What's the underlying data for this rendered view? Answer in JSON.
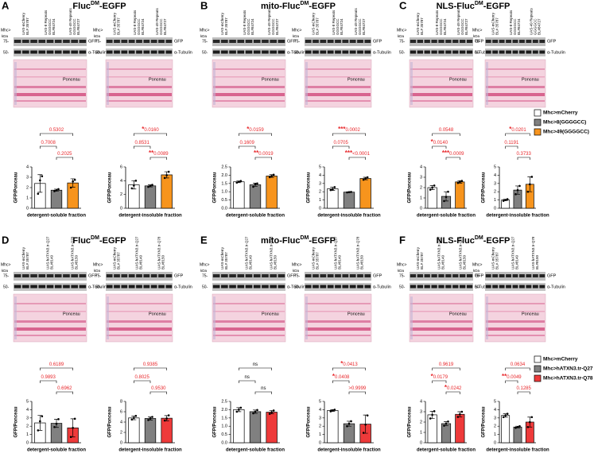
{
  "blot_labels": {
    "mhc": "Mhc>",
    "kda": "kDa",
    "m75": "75-",
    "m50": "50-",
    "gfp": "GFP",
    "tubulin": "α-Tubulin",
    "ponceau": "Ponceau"
  },
  "panels": [
    {
      "letter": "A",
      "title": [
        "Fluc",
        "DM",
        "-EGFP"
      ],
      "lanes": [
        [
          "UAS-mCherry",
          "BL# 35787"
        ],
        [
          "UAS-8 Repeats",
          "GGGGCC",
          "BL#84724"
        ],
        [
          "UAS-49 Repeats",
          "GGGGCC",
          "BL#84727"
        ]
      ]
    },
    {
      "letter": "B",
      "title": [
        "mito-Fluc",
        "DM",
        "-EGFP"
      ],
      "lanes": [
        [
          "UAS-mCherry",
          "BL# 35787"
        ],
        [
          "UAS-8 Repeats",
          "GGGGCC",
          "BL#84724"
        ],
        [
          "UAS-49 Repeats",
          "GGGGCC",
          "BL#84727"
        ]
      ]
    },
    {
      "letter": "C",
      "title": [
        "NLS-Fluc",
        "DM",
        "-EGFP"
      ],
      "lanes": [
        [
          "UAS-mCherry",
          "BL# 35787"
        ],
        [
          "UAS-8 Repeats",
          "GGGGCC",
          "BL#84724"
        ],
        [
          "UAS-49 Repeats",
          "GGGGCC",
          "BL#84727"
        ]
      ]
    },
    {
      "letter": "D",
      "title": [
        "Fluc",
        "DM",
        "-EGFP"
      ],
      "lanes": [
        [
          "UAS-mCherry",
          "BL# 35787"
        ],
        [
          "UAS-hATXN3.tr-Q27",
          "BL#8149"
        ],
        [
          "UAS-hATXN3.tr-Q78",
          "BL#8150"
        ]
      ]
    },
    {
      "letter": "E",
      "title": [
        "mito-Fluc",
        "DM",
        "-EGFP"
      ],
      "lanes": [
        [
          "UAS-mCherry",
          "BL# 35787"
        ],
        [
          "UAS-hATXN3.tr-Q27",
          "BL#8149"
        ],
        [
          "UAS-hATXN3.tr-Q78",
          "BL#8150"
        ]
      ]
    },
    {
      "letter": "F",
      "title": [
        "NLS-Fluc",
        "DM",
        "-EGFP"
      ],
      "lanes": [
        [
          "UAS-mCherry",
          "BL# 35787"
        ],
        [
          "UAS-hATXN3.tr-Q27",
          "BL#8149"
        ],
        [
          "UAS-hATXN3.tr-Q78",
          "BL#8150"
        ]
      ]
    }
  ],
  "legends": [
    [
      {
        "label": "Mhc>mCherry",
        "color": "#ffffff"
      },
      {
        "label": "Mhc>8(GGGGCC)",
        "color": "#808080"
      },
      {
        "label": "Mhc>49(GGGGCC)",
        "color": "#f7941d"
      }
    ],
    [
      {
        "label": "Mhc>mCherry",
        "color": "#ffffff"
      },
      {
        "label": "Mhc>hATXN3.tr-Q27",
        "color": "#808080"
      },
      {
        "label": "Mhc>hATXN3.tr-Q78",
        "color": "#ee3a3a"
      }
    ]
  ],
  "chart_data": [
    {
      "type": "bar",
      "xlabel": "detergent-soluble fraction",
      "ylabel": "GFP/Ponceau",
      "categories": [
        null,
        null,
        null
      ],
      "colors": [
        "#ffffff",
        "#808080",
        "#f7941d"
      ],
      "values": [
        2.4,
        1.75,
        2.45
      ],
      "errors": [
        0.85,
        0.1,
        0.4
      ],
      "points": [
        [
          1.4,
          2.7,
          3.1
        ],
        [
          1.65,
          1.75,
          1.85
        ],
        [
          2.0,
          2.6,
          2.75
        ]
      ],
      "ylim": [
        0,
        4
      ],
      "yticks": [
        0,
        1,
        2,
        3,
        4
      ],
      "annotation_color": "#e8262a",
      "comparisons": [
        {
          "p": "0.5302"
        },
        {
          "p": "0.7008"
        },
        {
          "p": "0.2025"
        }
      ]
    },
    {
      "type": "bar",
      "xlabel": "detergent-insoluble fraction",
      "ylabel": "GFP/Ponceau",
      "categories": [
        null,
        null,
        null
      ],
      "colors": [
        "#ffffff",
        "#808080",
        "#f7941d"
      ],
      "values": [
        3.4,
        3.25,
        4.85
      ],
      "errors": [
        0.6,
        0.15,
        0.45
      ],
      "points": [
        [
          2.9,
          3.3,
          4.0
        ],
        [
          3.1,
          3.25,
          3.4
        ],
        [
          4.4,
          4.8,
          5.3
        ]
      ],
      "ylim": [
        0,
        6
      ],
      "yticks": [
        0,
        2,
        4,
        6
      ],
      "annotation_color": "#e8262a",
      "comparisons": [
        {
          "stars": "*",
          "p": "0.0160"
        },
        {
          "p": "0.8531"
        },
        {
          "stars": "**",
          "p": "0.0089"
        }
      ]
    },
    {
      "type": "bar",
      "xlabel": "detergent-soluble fraction",
      "ylabel": "GFP/Ponceau",
      "categories": [
        null,
        null,
        null
      ],
      "colors": [
        "#ffffff",
        "#808080",
        "#f7941d"
      ],
      "values": [
        1.6,
        1.42,
        1.95
      ],
      "errors": [
        0.05,
        0.1,
        0.08
      ],
      "points": [
        [
          1.55,
          1.6,
          1.65
        ],
        [
          1.3,
          1.45,
          1.5
        ],
        [
          1.88,
          1.95,
          2.03
        ]
      ],
      "ylim": [
        0,
        2.5
      ],
      "yticks": [
        {
          "value": 0,
          "label": "0.0"
        },
        {
          "value": 0.5,
          "label": "0.5"
        },
        {
          "value": 1,
          "label": "1.0"
        },
        {
          "value": 1.5,
          "label": "1.5"
        },
        {
          "value": 2,
          "label": "2.0"
        },
        {
          "value": 2.5,
          "label": "2.5"
        }
      ],
      "annotation_color": "#e8262a",
      "comparisons": [
        {
          "stars": "*",
          "p": "0.0159"
        },
        {
          "p": "0.1609"
        },
        {
          "stars": "**",
          "p": "0.0019"
        }
      ]
    },
    {
      "type": "bar",
      "xlabel": "detergent-insoluble fraction",
      "ylabel": "GFP/Ponceau",
      "categories": [
        null,
        null,
        null
      ],
      "colors": [
        "#ffffff",
        "#808080",
        "#f7941d"
      ],
      "values": [
        2.35,
        1.95,
        3.6
      ],
      "errors": [
        0.2,
        0.04,
        0.15
      ],
      "points": [
        [
          2.2,
          2.3,
          2.55
        ],
        [
          1.92,
          1.95,
          1.98
        ],
        [
          3.45,
          3.6,
          3.75
        ]
      ],
      "ylim": [
        0,
        5
      ],
      "yticks": [
        0,
        1,
        2,
        3,
        4,
        5
      ],
      "annotation_color": "#e8262a",
      "comparisons": [
        {
          "stars": "***",
          "p": "0.0002"
        },
        {
          "p": "0.0705"
        },
        {
          "stars": "***",
          "p": "<0.0001"
        }
      ]
    },
    {
      "type": "bar",
      "xlabel": "detergent-soluble fraction",
      "ylabel": "GFP/Ponceau",
      "categories": [
        null,
        null,
        null
      ],
      "colors": [
        "#ffffff",
        "#808080",
        "#f7941d"
      ],
      "values": [
        2.0,
        1.15,
        2.55
      ],
      "errors": [
        0.2,
        0.45,
        0.12
      ],
      "points": [
        [
          1.8,
          2.0,
          2.2
        ],
        [
          0.7,
          1.1,
          1.6
        ],
        [
          2.45,
          2.55,
          2.65
        ]
      ],
      "ylim": [
        0,
        4
      ],
      "yticks": [
        0,
        1,
        2,
        3,
        4
      ],
      "annotation_color": "#e8262a",
      "comparisons": [
        {
          "p": "0.0548"
        },
        {
          "stars": "*",
          "p": "0.0140"
        },
        {
          "stars": "***",
          "p": "0.0009"
        }
      ]
    },
    {
      "type": "bar",
      "xlabel": "detergent-insoluble fraction",
      "ylabel": "GFP/Ponceau",
      "categories": [
        null,
        null,
        null
      ],
      "colors": [
        "#ffffff",
        "#808080",
        "#f7941d"
      ],
      "values": [
        1.0,
        2.2,
        2.9
      ],
      "errors": [
        0.08,
        0.5,
        0.9
      ],
      "points": [
        [
          0.9,
          1.0,
          1.1
        ],
        [
          1.7,
          2.2,
          2.7
        ],
        [
          2.0,
          2.9,
          3.8
        ]
      ],
      "ylim": [
        0,
        5
      ],
      "yticks": [
        0,
        1,
        2,
        3,
        4,
        5
      ],
      "annotation_color": "#e8262a",
      "comparisons": [
        {
          "stars": "*",
          "p": "0.0201"
        },
        {
          "p": "0.1191"
        },
        {
          "p": "0.3733"
        }
      ]
    },
    {
      "type": "bar",
      "xlabel": "detergent-soluble fraction",
      "ylabel": "GFP/Ponceau",
      "categories": [
        null,
        null,
        null
      ],
      "colors": [
        "#ffffff",
        "#808080",
        "#ee3a3a"
      ],
      "values": [
        2.4,
        2.35,
        1.8
      ],
      "errors": [
        0.9,
        0.5,
        1.1
      ],
      "points": [
        [
          1.5,
          2.6,
          3.2
        ],
        [
          1.9,
          2.3,
          2.85
        ],
        [
          0.7,
          1.8,
          2.9
        ]
      ],
      "ylim": [
        0,
        5
      ],
      "yticks": [
        0,
        1,
        2,
        3,
        4,
        5
      ],
      "annotation_color": "#e8262a",
      "comparisons": [
        {
          "p": "0.6189"
        },
        {
          "p": "0.9893"
        },
        {
          "p": "0.6962"
        }
      ]
    },
    {
      "type": "bar",
      "xlabel": "detergent-insoluble fraction",
      "ylabel": "GFP/Ponceau",
      "categories": [
        null,
        null,
        null
      ],
      "colors": [
        "#ffffff",
        "#808080",
        "#ee3a3a"
      ],
      "values": [
        4.8,
        4.7,
        4.75
      ],
      "errors": [
        0.35,
        0.3,
        0.5
      ],
      "points": [
        [
          4.5,
          4.8,
          5.2
        ],
        [
          4.4,
          4.7,
          5.0
        ],
        [
          4.3,
          4.7,
          5.3
        ]
      ],
      "ylim": [
        0,
        8
      ],
      "yticks": [
        0,
        2,
        4,
        6,
        8
      ],
      "annotation_color": "#e8262a",
      "comparisons": [
        {
          "p": "0.9385"
        },
        {
          "p": "0.8025"
        },
        {
          "p": "0.9530"
        }
      ]
    },
    {
      "type": "bar",
      "xlabel": "detergent-soluble fraction",
      "ylabel": "GFP/Ponceau",
      "categories": [
        null,
        null,
        null
      ],
      "colors": [
        "#ffffff",
        "#808080",
        "#ee3a3a"
      ],
      "values": [
        2.0,
        1.88,
        1.85
      ],
      "errors": [
        0.12,
        0.1,
        0.1
      ],
      "points": [
        [
          1.88,
          2.0,
          2.12
        ],
        [
          1.78,
          1.88,
          1.98
        ],
        [
          1.75,
          1.85,
          1.95
        ]
      ],
      "ylim": [
        0,
        2.5
      ],
      "yticks": [
        {
          "value": 0,
          "label": "0.0"
        },
        {
          "value": 0.5,
          "label": "0.5"
        },
        {
          "value": 1,
          "label": "1.0"
        },
        {
          "value": 1.5,
          "label": "1.5"
        },
        {
          "value": 2,
          "label": "2.0"
        },
        {
          "value": 2.5,
          "label": "2.5"
        }
      ],
      "annotation_color": "#000000",
      "comparisons": [
        {
          "p": "ns"
        },
        {
          "p": "ns"
        },
        {
          "p": "ns"
        }
      ]
    },
    {
      "type": "bar",
      "xlabel": "detergent-insoluble fraction",
      "ylabel": "GFP/Ponceau",
      "categories": [
        null,
        null,
        null
      ],
      "colors": [
        "#ffffff",
        "#808080",
        "#ee3a3a"
      ],
      "values": [
        3.9,
        2.3,
        2.25
      ],
      "errors": [
        0.1,
        0.3,
        1.1
      ],
      "points": [
        [
          3.8,
          3.9,
          4.0
        ],
        [
          2.0,
          2.3,
          2.6
        ],
        [
          1.2,
          2.2,
          3.3
        ]
      ],
      "ylim": [
        0,
        5
      ],
      "yticks": [
        0,
        1,
        2,
        3,
        4,
        5
      ],
      "annotation_color": "#e8262a",
      "comparisons": [
        {
          "stars": "*",
          "p": "0.0413"
        },
        {
          "stars": "*",
          "p": "0.0408"
        },
        {
          "p": ">0.9999"
        }
      ]
    },
    {
      "type": "bar",
      "xlabel": "detergent-soluble fraction",
      "ylabel": "GFP/Ponceau",
      "categories": [
        null,
        null,
        null
      ],
      "colors": [
        "#ffffff",
        "#808080",
        "#ee3a3a"
      ],
      "values": [
        2.7,
        1.85,
        2.75
      ],
      "errors": [
        0.35,
        0.2,
        0.25
      ],
      "points": [
        [
          2.35,
          2.7,
          3.05
        ],
        [
          1.65,
          1.85,
          2.05
        ],
        [
          2.5,
          2.75,
          3.0
        ]
      ],
      "ylim": [
        0,
        4
      ],
      "yticks": [
        0,
        1,
        2,
        3,
        4
      ],
      "annotation_color": "#e8262a",
      "comparisons": [
        {
          "p": "0.9619"
        },
        {
          "stars": "*",
          "p": "0.0179"
        },
        {
          "stars": "*",
          "p": "0.0242"
        }
      ]
    },
    {
      "type": "bar",
      "xlabel": "detergent-insoluble fraction",
      "ylabel": "GFP/Ponceau",
      "categories": [
        null,
        null,
        null
      ],
      "colors": [
        "#ffffff",
        "#808080",
        "#ee3a3a"
      ],
      "values": [
        3.3,
        1.9,
        2.5
      ],
      "errors": [
        0.2,
        0.1,
        0.6
      ],
      "points": [
        [
          3.1,
          3.3,
          3.5
        ],
        [
          1.8,
          1.9,
          2.0
        ],
        [
          1.9,
          2.5,
          3.1
        ]
      ],
      "ylim": [
        0,
        5
      ],
      "yticks": [
        0,
        1,
        2,
        3,
        4,
        5
      ],
      "annotation_color": "#e8262a",
      "comparisons": [
        {
          "p": "0.0634"
        },
        {
          "stars": "**",
          "p": "0.0049"
        },
        {
          "p": "0.1285"
        }
      ]
    }
  ]
}
